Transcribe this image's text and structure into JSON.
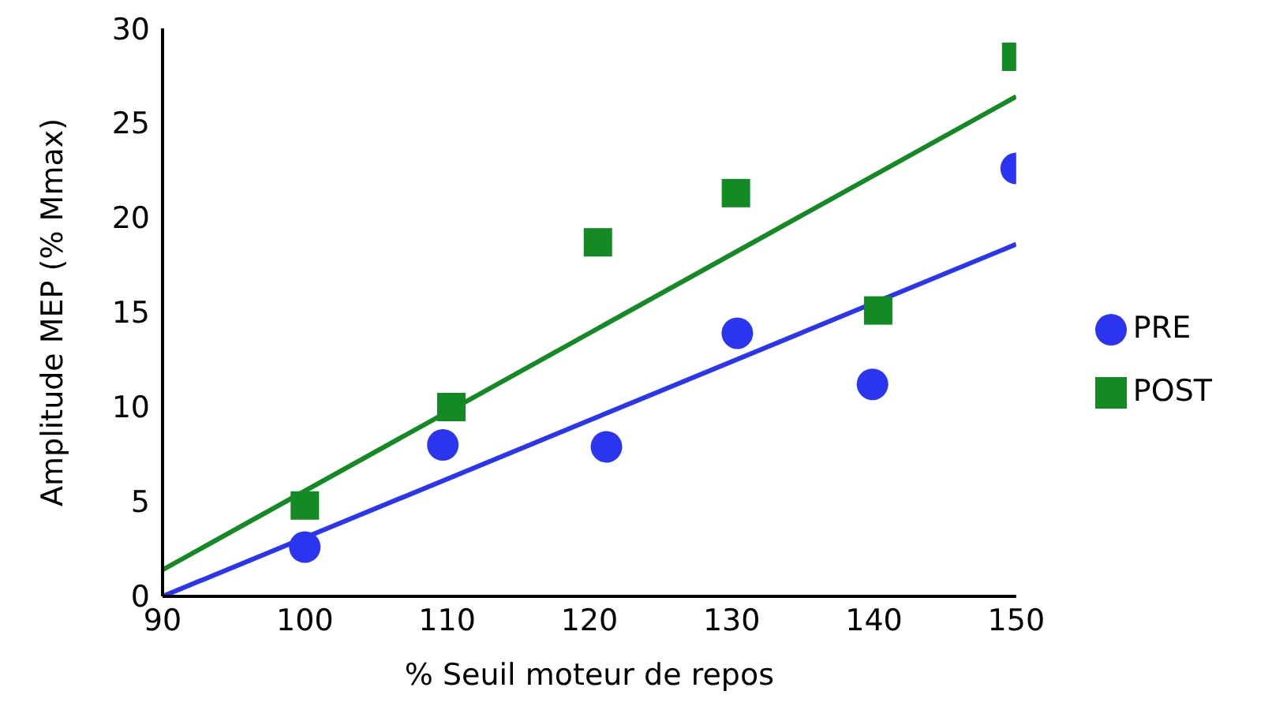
{
  "chart_data": {
    "type": "scatter",
    "xlabel": "% Seuil moteur de repos",
    "ylabel": "Amplitude MEP (% Mmax)",
    "series": [
      {
        "name": "PRE",
        "color": "#2b35f0",
        "marker": "circle",
        "x": [
          100,
          109.7,
          121.2,
          130.4,
          139.9,
          150
        ],
        "values": [
          2.6,
          8.0,
          7.9,
          13.9,
          11.2,
          22.6
        ]
      },
      {
        "name": "POST",
        "color": "#138a24",
        "marker": "square",
        "x": [
          100,
          110.3,
          120.6,
          130.3,
          140.3,
          150
        ],
        "values": [
          4.8,
          10.0,
          18.7,
          21.3,
          15.1,
          28.5
        ]
      },
      {
        "type": "line",
        "color": "#2b35f0",
        "marker": "none",
        "x": [
          90,
          150
        ],
        "values": [
          0,
          18.6
        ]
      },
      {
        "type": "line",
        "color": "#138a24",
        "marker": "none",
        "x": [
          90,
          150
        ],
        "values": [
          1.4,
          26.4
        ]
      }
    ],
    "xlim": [
      90,
      150
    ],
    "xticks": [
      90,
      100,
      110,
      120,
      130,
      140,
      150
    ],
    "ylim": [
      0,
      30
    ],
    "yticks": [
      0,
      5,
      10,
      15,
      20,
      25,
      30
    ],
    "grid": false,
    "legend": "right"
  }
}
